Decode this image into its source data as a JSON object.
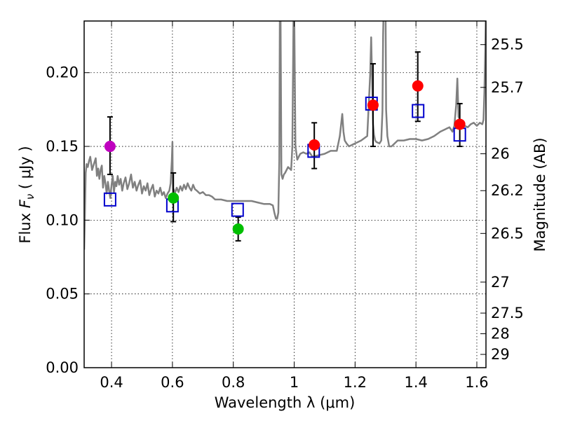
{
  "chart_data": {
    "type": "scatter",
    "title": "",
    "xlabel": "Wavelength  λ (μm)",
    "ylabel": "Flux  F_ν  ( μJy )",
    "ylabel_parts": {
      "pre": "Flux  ",
      "var": "F",
      "sub": "ν",
      "post": "  ( μJy )"
    },
    "y2label": "Magnitude (AB)",
    "xlim": [
      0.31,
      1.63
    ],
    "ylim": [
      0.0,
      0.235
    ],
    "xticks": [
      0.4,
      0.6,
      0.8,
      1.0,
      1.2,
      1.4,
      1.6
    ],
    "xtick_labels": [
      "0.4",
      "0.6",
      "0.8",
      "1",
      "1.2",
      "1.4",
      "1.6"
    ],
    "yticks": [
      0.0,
      0.05,
      0.1,
      0.15,
      0.2
    ],
    "ytick_labels": [
      "0.00",
      "0.05",
      "0.10",
      "0.15",
      "0.20"
    ],
    "y2ticks": [
      {
        "flux": 0.219,
        "label": "25.5"
      },
      {
        "flux": 0.19,
        "label": "25.7"
      },
      {
        "flux": 0.145,
        "label": "26"
      },
      {
        "flux": 0.12,
        "label": "26.2"
      },
      {
        "flux": 0.091,
        "label": "26.5"
      },
      {
        "flux": 0.058,
        "label": "27"
      },
      {
        "flux": 0.037,
        "label": "27.5"
      },
      {
        "flux": 0.023,
        "label": "28"
      },
      {
        "flux": 0.009,
        "label": "29"
      }
    ],
    "grid": true,
    "observed": [
      {
        "x": 0.395,
        "y": 0.15,
        "yerr_low": 0.131,
        "yerr_high": 0.17,
        "color": "#bf00bf"
      },
      {
        "x": 0.603,
        "y": 0.115,
        "yerr_low": 0.099,
        "yerr_high": 0.132,
        "color": "#00bf00"
      },
      {
        "x": 0.816,
        "y": 0.094,
        "yerr_low": 0.086,
        "yerr_high": 0.102,
        "color": "#00bf00"
      },
      {
        "x": 1.066,
        "y": 0.151,
        "yerr_low": 0.135,
        "yerr_high": 0.166,
        "color": "#ff0000"
      },
      {
        "x": 1.259,
        "y": 0.178,
        "yerr_low": 0.15,
        "yerr_high": 0.206,
        "color": "#ff0000"
      },
      {
        "x": 1.406,
        "y": 0.191,
        "yerr_low": 0.167,
        "yerr_high": 0.214,
        "color": "#ff0000"
      },
      {
        "x": 1.544,
        "y": 0.165,
        "yerr_low": 0.15,
        "yerr_high": 0.179,
        "color": "#ff0000"
      }
    ],
    "model_points": [
      {
        "x": 0.395,
        "y": 0.114
      },
      {
        "x": 0.6,
        "y": 0.11
      },
      {
        "x": 0.814,
        "y": 0.107
      },
      {
        "x": 1.064,
        "y": 0.147
      },
      {
        "x": 1.254,
        "y": 0.179
      },
      {
        "x": 1.407,
        "y": 0.174
      },
      {
        "x": 1.544,
        "y": 0.158
      }
    ],
    "spectrum": {
      "color": "#808080",
      "x": [
        0.31,
        0.312,
        0.315,
        0.318,
        0.322,
        0.326,
        0.33,
        0.336,
        0.342,
        0.348,
        0.352,
        0.356,
        0.36,
        0.364,
        0.368,
        0.372,
        0.376,
        0.38,
        0.384,
        0.388,
        0.392,
        0.396,
        0.4,
        0.404,
        0.408,
        0.412,
        0.416,
        0.42,
        0.425,
        0.43,
        0.435,
        0.44,
        0.446,
        0.452,
        0.458,
        0.464,
        0.47,
        0.476,
        0.482,
        0.488,
        0.494,
        0.5,
        0.506,
        0.512,
        0.518,
        0.524,
        0.53,
        0.536,
        0.542,
        0.548,
        0.554,
        0.56,
        0.566,
        0.572,
        0.578,
        0.584,
        0.59,
        0.594,
        0.598,
        0.6,
        0.601,
        0.602,
        0.604,
        0.608,
        0.614,
        0.62,
        0.626,
        0.632,
        0.638,
        0.644,
        0.65,
        0.656,
        0.662,
        0.668,
        0.674,
        0.68,
        0.69,
        0.7,
        0.71,
        0.72,
        0.73,
        0.74,
        0.76,
        0.78,
        0.8,
        0.82,
        0.84,
        0.86,
        0.88,
        0.9,
        0.92,
        0.93,
        0.935,
        0.94,
        0.944,
        0.948,
        0.951,
        0.953,
        0.955,
        0.958,
        0.962,
        0.966,
        0.97,
        0.98,
        0.99,
        0.994,
        0.998,
        1.0,
        1.004,
        1.01,
        1.02,
        1.03,
        1.04,
        1.05,
        1.06,
        1.08,
        1.1,
        1.12,
        1.14,
        1.15,
        1.158,
        1.162,
        1.166,
        1.172,
        1.18,
        1.2,
        1.22,
        1.24,
        1.25,
        1.253,
        1.256,
        1.259,
        1.262,
        1.266,
        1.27,
        1.28,
        1.286,
        1.29,
        1.292,
        1.294,
        1.296,
        1.298,
        1.3,
        1.302,
        1.306,
        1.312,
        1.32,
        1.34,
        1.36,
        1.38,
        1.4,
        1.42,
        1.44,
        1.46,
        1.48,
        1.5,
        1.51,
        1.52,
        1.526,
        1.532,
        1.536,
        1.54,
        1.55,
        1.56,
        1.57,
        1.58,
        1.59,
        1.6,
        1.61,
        1.618,
        1.622,
        1.625,
        1.628,
        1.63
      ],
      "y": [
        0.08,
        0.1,
        0.132,
        0.138,
        0.136,
        0.14,
        0.143,
        0.134,
        0.138,
        0.142,
        0.13,
        0.135,
        0.128,
        0.134,
        0.137,
        0.122,
        0.13,
        0.125,
        0.118,
        0.126,
        0.12,
        0.115,
        0.124,
        0.13,
        0.119,
        0.126,
        0.123,
        0.13,
        0.124,
        0.128,
        0.12,
        0.125,
        0.129,
        0.121,
        0.125,
        0.131,
        0.122,
        0.126,
        0.12,
        0.124,
        0.127,
        0.118,
        0.123,
        0.12,
        0.125,
        0.117,
        0.121,
        0.124,
        0.116,
        0.12,
        0.118,
        0.122,
        0.117,
        0.119,
        0.115,
        0.118,
        0.12,
        0.125,
        0.14,
        0.153,
        0.128,
        0.116,
        0.121,
        0.118,
        0.122,
        0.119,
        0.123,
        0.12,
        0.124,
        0.121,
        0.125,
        0.122,
        0.12,
        0.124,
        0.121,
        0.12,
        0.118,
        0.119,
        0.117,
        0.117,
        0.116,
        0.114,
        0.114,
        0.113,
        0.113,
        0.113,
        0.113,
        0.113,
        0.112,
        0.111,
        0.111,
        0.11,
        0.105,
        0.101,
        0.101,
        0.105,
        0.14,
        0.245,
        0.245,
        0.131,
        0.128,
        0.131,
        0.132,
        0.136,
        0.134,
        0.15,
        0.245,
        0.245,
        0.15,
        0.141,
        0.145,
        0.146,
        0.145,
        0.146,
        0.143,
        0.144,
        0.145,
        0.147,
        0.147,
        0.157,
        0.172,
        0.16,
        0.154,
        0.152,
        0.15,
        0.152,
        0.154,
        0.157,
        0.2,
        0.224,
        0.195,
        0.165,
        0.158,
        0.154,
        0.153,
        0.152,
        0.154,
        0.174,
        0.225,
        0.245,
        0.245,
        0.245,
        0.245,
        0.175,
        0.157,
        0.15,
        0.15,
        0.154,
        0.154,
        0.155,
        0.155,
        0.154,
        0.155,
        0.157,
        0.16,
        0.162,
        0.163,
        0.16,
        0.164,
        0.178,
        0.196,
        0.17,
        0.166,
        0.164,
        0.163,
        0.165,
        0.166,
        0.164,
        0.166,
        0.165,
        0.168,
        0.187,
        0.218,
        0.245
      ]
    }
  }
}
